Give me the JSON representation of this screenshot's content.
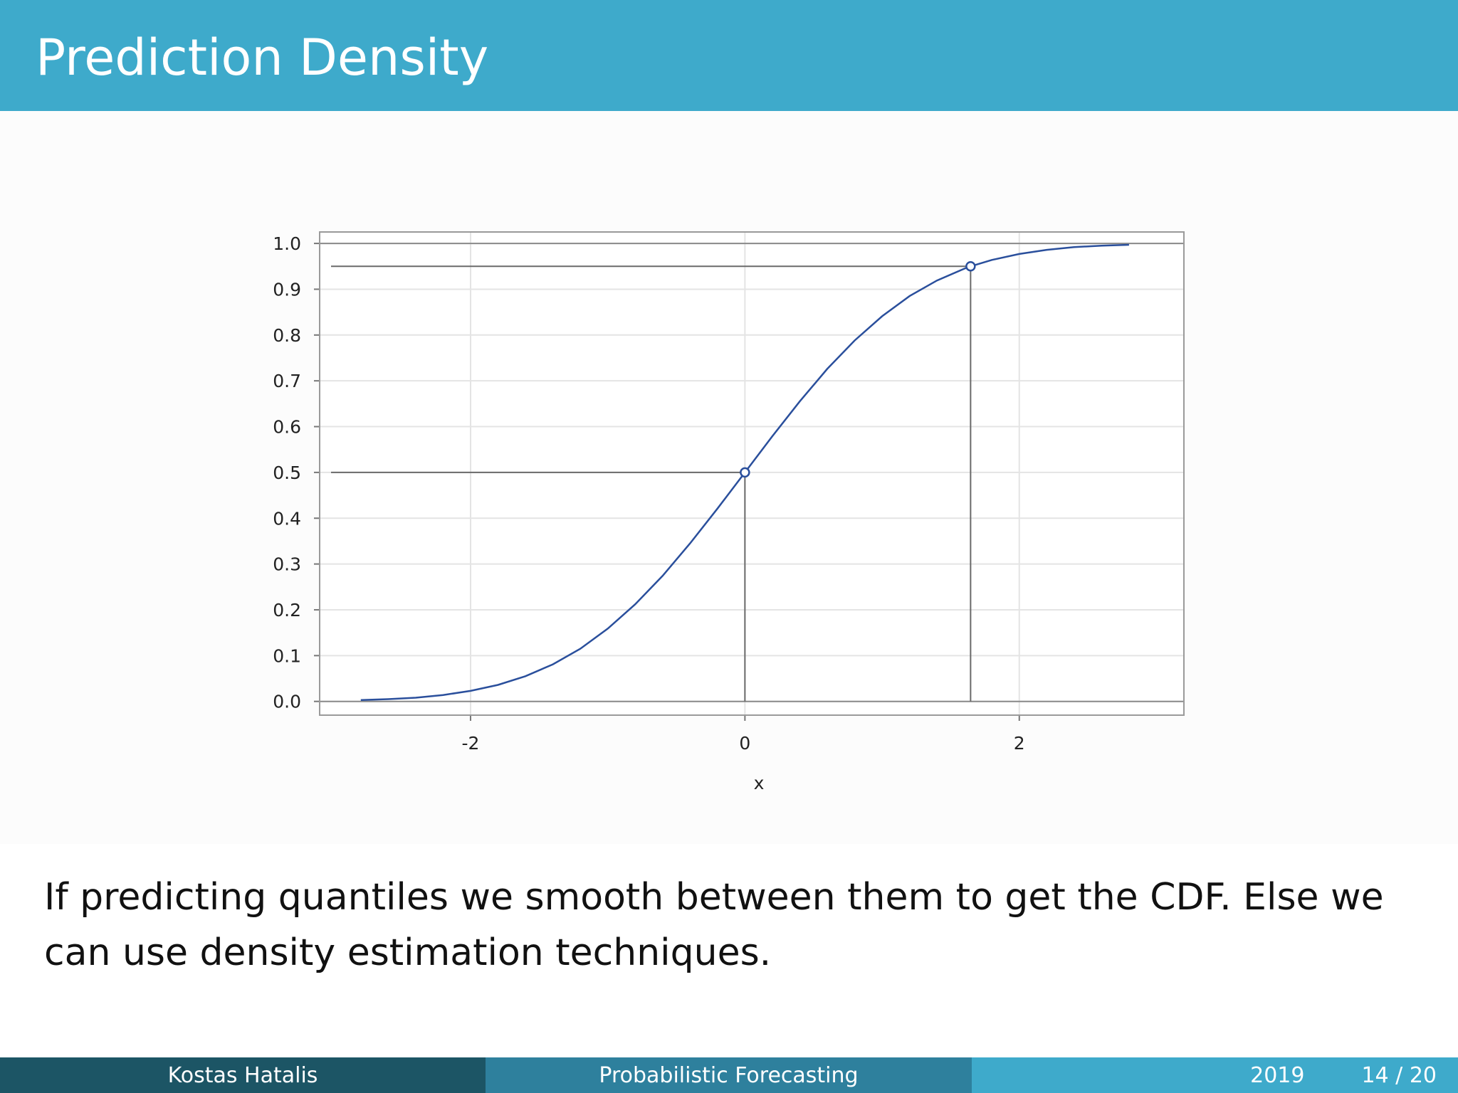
{
  "slide": {
    "title": "Prediction Density",
    "body": "If predicting quantiles we smooth between them to get the CDF. Else we can use density estimation techniques."
  },
  "footer": {
    "author": "Kostas Hatalis",
    "talk_title": "Probabilistic Forecasting",
    "year": "2019",
    "page": "14 / 20"
  },
  "colors": {
    "header": "#3eaacb",
    "footer_dark": "#1c5565",
    "footer_mid": "#2e809d",
    "curve": "#2a4f9c"
  },
  "chart_data": {
    "type": "line",
    "title": "",
    "xlabel": "x",
    "ylabel": "",
    "xlim": [
      -3.1,
      3.2
    ],
    "ylim": [
      -0.03,
      1.025
    ],
    "x_ticks": [
      "-2",
      "0",
      "2"
    ],
    "x_tick_values": [
      -2,
      0,
      2
    ],
    "y_ticks": [
      "0.0",
      "0.1",
      "0.2",
      "0.3",
      "0.4",
      "0.5",
      "0.6",
      "0.7",
      "0.8",
      "0.9",
      "1.0"
    ],
    "y_tick_values": [
      0.0,
      0.1,
      0.2,
      0.3,
      0.4,
      0.5,
      0.6,
      0.7,
      0.8,
      0.9,
      1.0
    ],
    "grid": true,
    "series": [
      {
        "x": [
          -2.8,
          -2.6,
          -2.4,
          -2.2,
          -2.0,
          -1.8,
          -1.6,
          -1.4,
          -1.2,
          -1.0,
          -0.8,
          -0.6,
          -0.4,
          -0.2,
          0.0,
          0.2,
          0.4,
          0.6,
          0.8,
          1.0,
          1.2,
          1.4,
          1.6,
          1.645,
          1.8,
          2.0,
          2.2,
          2.4,
          2.6,
          2.8
        ],
        "y": [
          0.003,
          0.005,
          0.008,
          0.014,
          0.023,
          0.036,
          0.055,
          0.081,
          0.115,
          0.159,
          0.212,
          0.274,
          0.345,
          0.421,
          0.5,
          0.579,
          0.655,
          0.726,
          0.788,
          0.841,
          0.885,
          0.919,
          0.945,
          0.95,
          0.964,
          0.977,
          0.986,
          0.992,
          0.995,
          0.997
        ]
      }
    ],
    "highlighted_points": [
      {
        "x": 0.0,
        "y": 0.5
      },
      {
        "x": 1.645,
        "y": 0.95
      }
    ]
  }
}
